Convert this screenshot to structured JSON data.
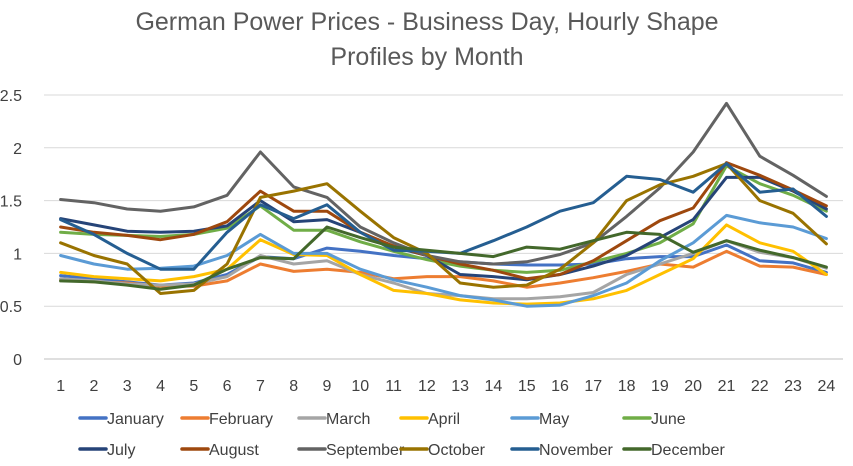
{
  "chart_data": {
    "type": "line",
    "title": "German Power Prices - Business Day, Hourly Shape",
    "title_line2": "Profiles by Month",
    "xlabel": "",
    "ylabel": "",
    "x": [
      "1",
      "2",
      "3",
      "4",
      "5",
      "6",
      "7",
      "8",
      "9",
      "10",
      "11",
      "12",
      "13",
      "14",
      "15",
      "16",
      "17",
      "18",
      "19",
      "20",
      "21",
      "22",
      "23",
      "24"
    ],
    "ylim": [
      0,
      2.5
    ],
    "yticks": [
      "0",
      "0.5",
      "1",
      "1.5",
      "2",
      "2.5"
    ],
    "grid": true,
    "legend_position": "bottom",
    "series": [
      {
        "name": "January",
        "color": "#4472C4",
        "values": [
          0.79,
          0.76,
          0.73,
          0.7,
          0.72,
          0.8,
          0.97,
          0.95,
          1.05,
          1.02,
          0.98,
          0.95,
          0.92,
          0.9,
          0.89,
          0.89,
          0.9,
          0.95,
          0.97,
          0.97,
          1.08,
          0.93,
          0.91,
          0.82
        ]
      },
      {
        "name": "February",
        "color": "#ED7D31",
        "values": [
          0.75,
          0.73,
          0.72,
          0.69,
          0.69,
          0.74,
          0.9,
          0.83,
          0.85,
          0.82,
          0.76,
          0.78,
          0.78,
          0.74,
          0.68,
          0.72,
          0.77,
          0.83,
          0.9,
          0.87,
          1.02,
          0.88,
          0.87,
          0.8
        ]
      },
      {
        "name": "March",
        "color": "#A5A5A5",
        "values": [
          0.76,
          0.74,
          0.71,
          0.7,
          0.71,
          0.78,
          0.98,
          0.9,
          0.93,
          0.8,
          0.72,
          0.62,
          0.6,
          0.57,
          0.57,
          0.59,
          0.63,
          0.8,
          0.9,
          1.0,
          1.12,
          1.01,
          0.96,
          0.86
        ]
      },
      {
        "name": "April",
        "color": "#FFC000",
        "values": [
          0.82,
          0.78,
          0.76,
          0.74,
          0.78,
          0.85,
          1.13,
          0.99,
          0.98,
          0.8,
          0.65,
          0.62,
          0.56,
          0.53,
          0.52,
          0.53,
          0.57,
          0.65,
          0.8,
          0.95,
          1.27,
          1.1,
          1.02,
          0.8
        ]
      },
      {
        "name": "May",
        "color": "#5B9BD5",
        "values": [
          0.98,
          0.9,
          0.85,
          0.86,
          0.88,
          0.98,
          1.18,
          1.0,
          1.0,
          0.85,
          0.75,
          0.68,
          0.6,
          0.56,
          0.5,
          0.51,
          0.6,
          0.72,
          0.93,
          1.1,
          1.36,
          1.29,
          1.25,
          1.14
        ]
      },
      {
        "name": "June",
        "color": "#70AD47",
        "values": [
          1.2,
          1.18,
          1.17,
          1.16,
          1.18,
          1.24,
          1.45,
          1.22,
          1.22,
          1.11,
          1.02,
          0.94,
          0.88,
          0.84,
          0.82,
          0.84,
          0.92,
          1.0,
          1.1,
          1.28,
          1.83,
          1.66,
          1.55,
          1.4
        ]
      },
      {
        "name": "July",
        "color": "#264478",
        "values": [
          1.33,
          1.27,
          1.21,
          1.2,
          1.21,
          1.26,
          1.5,
          1.3,
          1.32,
          1.2,
          1.06,
          0.98,
          0.8,
          0.78,
          0.75,
          0.8,
          0.88,
          0.98,
          1.15,
          1.32,
          1.72,
          1.72,
          1.59,
          1.42
        ]
      },
      {
        "name": "August",
        "color": "#9E480E",
        "values": [
          1.25,
          1.2,
          1.17,
          1.13,
          1.18,
          1.3,
          1.59,
          1.4,
          1.4,
          1.2,
          1.07,
          0.98,
          0.9,
          0.84,
          0.76,
          0.8,
          0.93,
          1.12,
          1.31,
          1.43,
          1.86,
          1.74,
          1.6,
          1.45
        ]
      },
      {
        "name": "September",
        "color": "#636363",
        "values": [
          1.51,
          1.48,
          1.42,
          1.4,
          1.44,
          1.55,
          1.96,
          1.63,
          1.53,
          1.25,
          1.1,
          0.98,
          0.92,
          0.9,
          0.92,
          0.99,
          1.1,
          1.35,
          1.62,
          1.96,
          2.42,
          1.92,
          1.74,
          1.54
        ]
      },
      {
        "name": "October",
        "color": "#997300",
        "values": [
          1.1,
          0.98,
          0.9,
          0.62,
          0.65,
          0.9,
          1.53,
          1.59,
          1.66,
          1.4,
          1.15,
          1.0,
          0.72,
          0.68,
          0.7,
          0.85,
          1.1,
          1.5,
          1.65,
          1.73,
          1.85,
          1.5,
          1.38,
          1.09
        ]
      },
      {
        "name": "November",
        "color": "#255E91",
        "values": [
          1.32,
          1.18,
          1.0,
          0.85,
          0.85,
          1.2,
          1.46,
          1.33,
          1.46,
          1.2,
          1.03,
          1.02,
          1.0,
          1.12,
          1.25,
          1.4,
          1.48,
          1.73,
          1.7,
          1.58,
          1.85,
          1.58,
          1.61,
          1.35
        ]
      },
      {
        "name": "December",
        "color": "#43682B",
        "values": [
          0.74,
          0.73,
          0.7,
          0.66,
          0.7,
          0.85,
          0.96,
          0.95,
          1.25,
          1.15,
          1.06,
          1.03,
          1.0,
          0.97,
          1.06,
          1.04,
          1.12,
          1.2,
          1.18,
          1.01,
          1.12,
          1.03,
          0.96,
          0.87
        ]
      }
    ]
  }
}
